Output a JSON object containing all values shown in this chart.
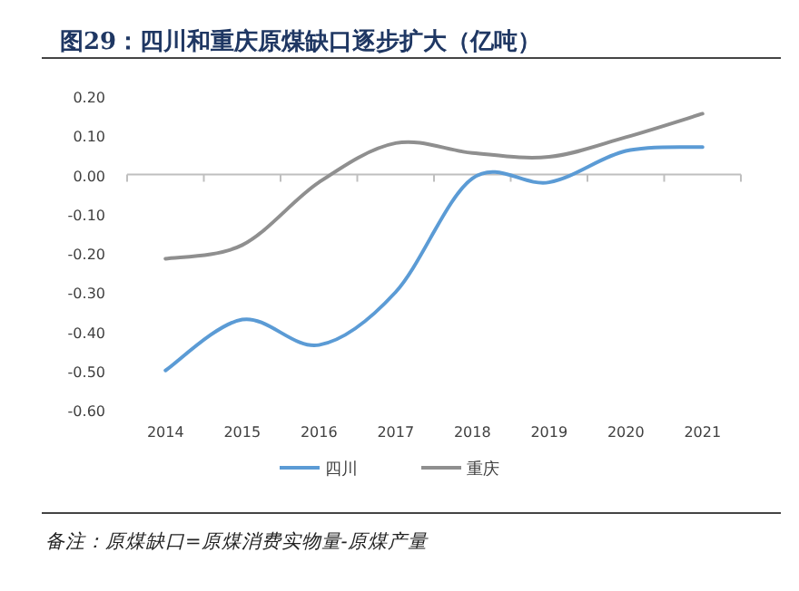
{
  "chart_data": {
    "type": "line",
    "title": "图29：四川和重庆原煤缺口逐步扩大（亿吨）",
    "categories": [
      "2014",
      "2015",
      "2016",
      "2017",
      "2018",
      "2019",
      "2020",
      "2021"
    ],
    "series": [
      {
        "name": "四川",
        "color": "#5b9bd5",
        "values": [
          -0.5,
          -0.37,
          -0.435,
          -0.3,
          -0.01,
          -0.02,
          0.06,
          0.07
        ]
      },
      {
        "name": "重庆",
        "color": "#8f8f8f",
        "values": [
          -0.215,
          -0.18,
          -0.02,
          0.08,
          0.055,
          0.045,
          0.095,
          0.155
        ]
      }
    ],
    "ylim": [
      -0.6,
      0.2
    ],
    "yticks": [
      {
        "value": 0.2,
        "label": "0.20"
      },
      {
        "value": 0.1,
        "label": "0.10"
      },
      {
        "value": 0,
        "label": "0.00"
      },
      {
        "value": -0.1,
        "label": "-0.10"
      },
      {
        "value": -0.2,
        "label": "-0.20"
      },
      {
        "value": -0.3,
        "label": "-0.30"
      },
      {
        "value": -0.4,
        "label": "-0.40"
      },
      {
        "value": -0.5,
        "label": "-0.50"
      },
      {
        "value": -0.6,
        "label": "-0.60"
      }
    ],
    "legend": "bottom",
    "annotations": [
      "备注：原煤缺口=原煤消费实物量-原煤产量"
    ]
  }
}
